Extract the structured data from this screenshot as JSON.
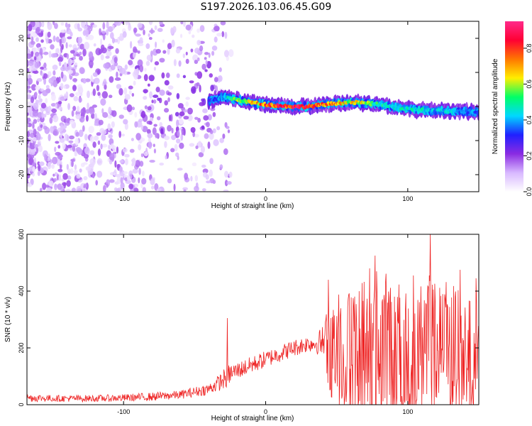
{
  "title": "S197.2026.103.06.45.G09",
  "colors": {
    "snr_line": "#ee2222",
    "frame": "#000000"
  },
  "chart_data": [
    {
      "type": "heatmap",
      "title": "S197.2026.103.06.45.G09",
      "xlabel": "Height of straight line (km)",
      "ylabel": "Frequency (Hz)",
      "xlim": [
        -168,
        150
      ],
      "ylim": [
        -25,
        25
      ],
      "xticks": [
        -100,
        0,
        100
      ],
      "yticks": [
        -20,
        -10,
        0,
        10,
        20
      ],
      "colorbar": {
        "label": "Normalized spectral amplitude",
        "range": [
          0,
          0.95
        ],
        "ticks": [
          "0.0",
          "0.2",
          "0.4",
          "0.6",
          "0.8"
        ],
        "tick_values": [
          0,
          0.2,
          0.4,
          0.6,
          0.8
        ],
        "colormap": [
          "#ffffff",
          "#d8b8ff",
          "#8a2be2",
          "#2020ff",
          "#00d8ff",
          "#00ff66",
          "#ffee00",
          "#ff7700",
          "#ff0033",
          "#ff2a8a"
        ]
      },
      "signal_track": {
        "x": [
          -40,
          -30,
          -20,
          -10,
          0,
          10,
          20,
          30,
          40,
          50,
          60,
          70,
          80,
          90,
          100,
          110,
          120,
          130,
          140,
          150
        ],
        "frequency": [
          1.5,
          2.8,
          2.0,
          1.2,
          0.6,
          0.2,
          0.0,
          0.0,
          0.5,
          1.0,
          1.2,
          1.0,
          0.6,
          -0.2,
          -0.8,
          -1.0,
          -1.2,
          -1.3,
          -1.4,
          -1.6
        ],
        "peak_amplitude": [
          0.35,
          0.45,
          0.6,
          0.7,
          0.85,
          0.9,
          0.92,
          0.9,
          0.8,
          0.75,
          0.7,
          0.65,
          0.55,
          0.5,
          0.5,
          0.5,
          0.45,
          0.45,
          0.4,
          0.4
        ]
      },
      "noise_region": {
        "x_range": [
          -168,
          -32
        ],
        "description": "scattered low-amplitude noise"
      }
    },
    {
      "type": "line",
      "xlabel": "Height of straight line (km)",
      "ylabel": "SNR (10 * v/v)",
      "xlim": [
        -168,
        150
      ],
      "ylim": [
        0,
        600
      ],
      "xticks": [
        -100,
        0,
        100
      ],
      "yticks": [
        0,
        200,
        400,
        600
      ],
      "series": [
        {
          "name": "SNR",
          "x": [
            -168,
            -150,
            -120,
            -100,
            -80,
            -60,
            -50,
            -40,
            -32,
            -28,
            -25,
            -20,
            -15,
            -10,
            0,
            10,
            20,
            30,
            35,
            40,
            45,
            50,
            55,
            60,
            70,
            75,
            80,
            90,
            100,
            110,
            115,
            120,
            130,
            140,
            145,
            150
          ],
          "mean": [
            25,
            22,
            22,
            24,
            28,
            35,
            45,
            55,
            80,
            95,
            110,
            120,
            130,
            140,
            160,
            180,
            200,
            215,
            215,
            220,
            200,
            190,
            180,
            180,
            190,
            200,
            200,
            190,
            190,
            200,
            210,
            200,
            190,
            170,
            170,
            180
          ],
          "amplitude": [
            15,
            12,
            12,
            13,
            15,
            15,
            18,
            20,
            30,
            40,
            35,
            30,
            30,
            30,
            30,
            30,
            30,
            30,
            30,
            60,
            150,
            180,
            200,
            220,
            240,
            250,
            250,
            240,
            230,
            240,
            250,
            230,
            220,
            190,
            190,
            180
          ],
          "peaks": [
            {
              "x": -27,
              "y": 305
            },
            {
              "x": 44,
              "y": 440
            },
            {
              "x": 73,
              "y": 480
            },
            {
              "x": 77,
              "y": 525
            },
            {
              "x": 104,
              "y": 455
            },
            {
              "x": 116,
              "y": 600
            },
            {
              "x": 137,
              "y": 475
            },
            {
              "x": 148,
              "y": 445
            }
          ]
        }
      ]
    }
  ]
}
